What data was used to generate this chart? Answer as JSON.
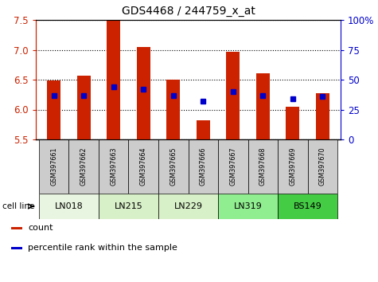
{
  "title": "GDS4468 / 244759_x_at",
  "samples": [
    "GSM397661",
    "GSM397662",
    "GSM397663",
    "GSM397664",
    "GSM397665",
    "GSM397666",
    "GSM397667",
    "GSM397668",
    "GSM397669",
    "GSM397670"
  ],
  "cell_lines": [
    {
      "name": "LN018",
      "indices": [
        0,
        1
      ]
    },
    {
      "name": "LN215",
      "indices": [
        2,
        3
      ]
    },
    {
      "name": "LN229",
      "indices": [
        4,
        5
      ]
    },
    {
      "name": "LN319",
      "indices": [
        6,
        7
      ]
    },
    {
      "name": "BS149",
      "indices": [
        8,
        9
      ]
    }
  ],
  "cell_line_colors": {
    "LN018": "#e8f5e0",
    "LN215": "#d8f0c8",
    "LN229": "#d8f0c8",
    "LN319": "#90ee90",
    "BS149": "#44cc44"
  },
  "count_values": [
    6.49,
    6.57,
    7.5,
    7.05,
    6.5,
    5.82,
    6.97,
    6.61,
    6.05,
    6.27
  ],
  "percentile_right_axis": [
    37,
    37,
    44,
    42,
    37,
    32,
    40,
    37,
    34,
    36
  ],
  "bar_bottom": 5.5,
  "ylim_left": [
    5.5,
    7.5
  ],
  "ylim_right": [
    0,
    100
  ],
  "yticks_left": [
    5.5,
    6.0,
    6.5,
    7.0,
    7.5
  ],
  "yticks_right": [
    0,
    25,
    50,
    75,
    100
  ],
  "ytick_labels_right": [
    "0",
    "25",
    "50",
    "75",
    "100%"
  ],
  "bar_color": "#cc2200",
  "square_color": "#0000cc",
  "sample_box_color": "#cccccc",
  "bar_width": 0.45,
  "legend_count_label": "count",
  "legend_pct_label": "percentile rank within the sample",
  "cell_line_label": "cell line"
}
